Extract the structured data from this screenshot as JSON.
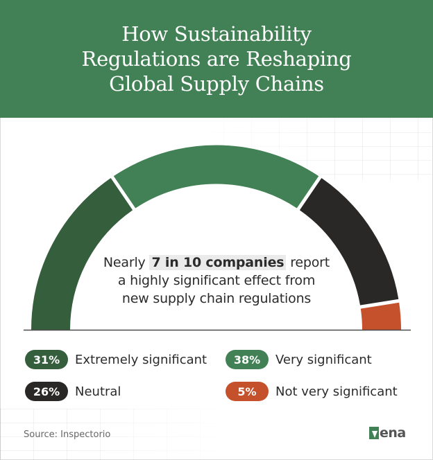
{
  "header": {
    "title": "How Sustainability Regulations are Reshaping Global Supply Chains"
  },
  "center_text": {
    "prefix": "Nearly",
    "highlight": "7 in 10 companies",
    "line1_suffix": "report",
    "line2": "a highly significant effect from",
    "line3": "new supply chain regulations"
  },
  "legend": [
    {
      "value_label": "31%",
      "label": "Extremely significant",
      "color": "#345e3c"
    },
    {
      "value_label": "38%",
      "label": "Very significant",
      "color": "#428155"
    },
    {
      "value_label": "26%",
      "label": "Neutral",
      "color": "#2a2826"
    },
    {
      "value_label": "5%",
      "label": "Not very significant",
      "color": "#c4502c"
    }
  ],
  "footer": {
    "source": "Source: Inspectorio",
    "logo_text": "ena"
  },
  "colors": {
    "header_bg": "#428155",
    "dark_green": "#345e3c",
    "green": "#428155",
    "black": "#2a2826",
    "red": "#c4502c"
  },
  "chart_data": {
    "type": "pie",
    "subtype": "half-donut gauge",
    "title": "How Sustainability Regulations are Reshaping Global Supply Chains",
    "categories": [
      "Extremely significant",
      "Very significant",
      "Neutral",
      "Not very significant"
    ],
    "values": [
      31,
      38,
      26,
      5
    ],
    "unit": "%",
    "colors": [
      "#345e3c",
      "#428155",
      "#2a2826",
      "#c4502c"
    ],
    "annotation": "Nearly 7 in 10 companies report a highly significant effect from new supply chain regulations",
    "legend_position": "bottom",
    "source": "Source: Inspectorio"
  }
}
